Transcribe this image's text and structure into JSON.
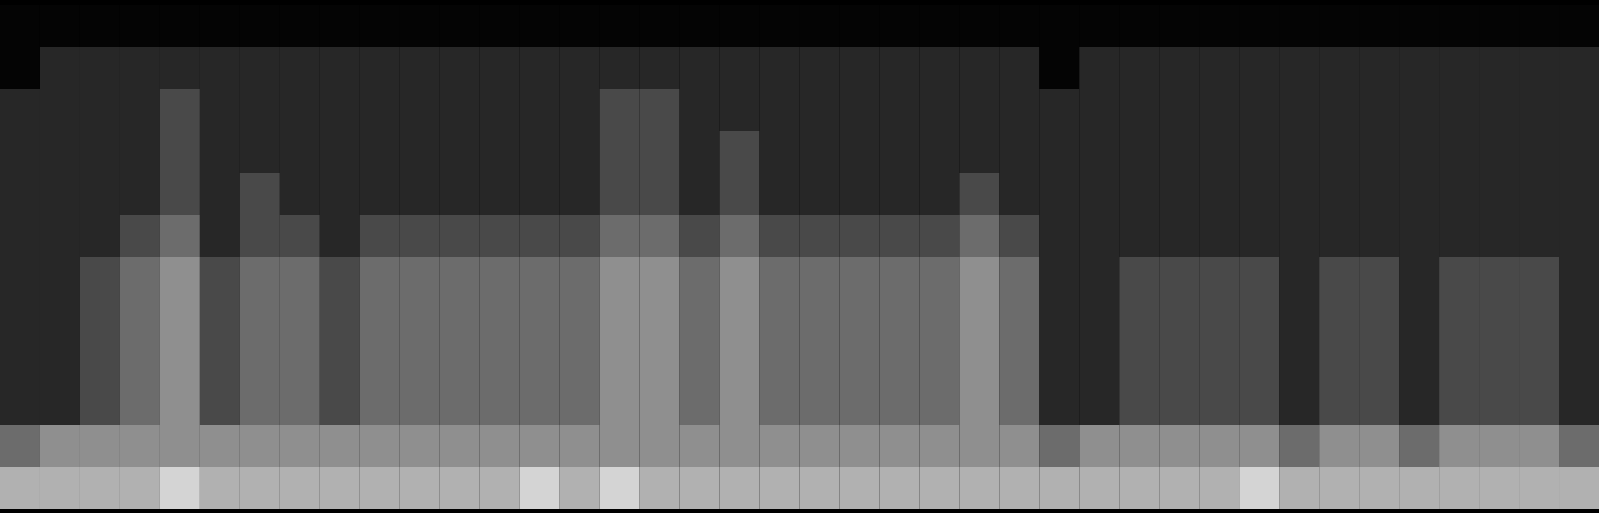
{
  "chart_data": {
    "type": "heatmap",
    "tick_labels": false,
    "zlim": [
      0,
      6
    ],
    "cells": [
      [
        0,
        0,
        0,
        0,
        0,
        0,
        0,
        0,
        0,
        0,
        0,
        0,
        0,
        0,
        0,
        0,
        0,
        0,
        0,
        0,
        0,
        0,
        0,
        0,
        0,
        0,
        0,
        0,
        0,
        0,
        0,
        0,
        0,
        0,
        0,
        0,
        0,
        0,
        0,
        0
      ],
      [
        0,
        1,
        1,
        1,
        1,
        1,
        1,
        1,
        1,
        1,
        1,
        1,
        1,
        1,
        1,
        1,
        1,
        1,
        1,
        1,
        1,
        1,
        1,
        1,
        1,
        1,
        0,
        1,
        1,
        1,
        1,
        1,
        1,
        1,
        1,
        1,
        1,
        1,
        1,
        1
      ],
      [
        1,
        1,
        1,
        1,
        2,
        1,
        1,
        1,
        1,
        1,
        1,
        1,
        1,
        1,
        1,
        2,
        2,
        1,
        1,
        1,
        1,
        1,
        1,
        1,
        1,
        1,
        1,
        1,
        1,
        1,
        1,
        1,
        1,
        1,
        1,
        1,
        1,
        1,
        1,
        1
      ],
      [
        1,
        1,
        1,
        1,
        2,
        1,
        1,
        1,
        1,
        1,
        1,
        1,
        1,
        1,
        1,
        2,
        2,
        1,
        2,
        1,
        1,
        1,
        1,
        1,
        1,
        1,
        1,
        1,
        1,
        1,
        1,
        1,
        1,
        1,
        1,
        1,
        1,
        1,
        1,
        1
      ],
      [
        1,
        1,
        1,
        1,
        2,
        1,
        2,
        1,
        1,
        1,
        1,
        1,
        1,
        1,
        1,
        2,
        2,
        1,
        2,
        1,
        1,
        1,
        1,
        1,
        2,
        1,
        1,
        1,
        1,
        1,
        1,
        1,
        1,
        1,
        1,
        1,
        1,
        1,
        1,
        1
      ],
      [
        1,
        1,
        1,
        2,
        3,
        1,
        2,
        2,
        1,
        2,
        2,
        2,
        2,
        2,
        2,
        3,
        3,
        2,
        3,
        2,
        2,
        2,
        2,
        2,
        3,
        2,
        1,
        1,
        1,
        1,
        1,
        1,
        1,
        1,
        1,
        1,
        1,
        1,
        1,
        1
      ],
      [
        1,
        1,
        2,
        3,
        4,
        2,
        3,
        3,
        2,
        3,
        3,
        3,
        3,
        3,
        3,
        4,
        4,
        3,
        4,
        3,
        3,
        3,
        3,
        3,
        4,
        3,
        1,
        1,
        2,
        2,
        2,
        2,
        1,
        2,
        2,
        1,
        2,
        2,
        2,
        1
      ],
      [
        1,
        1,
        2,
        3,
        4,
        2,
        3,
        3,
        2,
        3,
        3,
        3,
        3,
        3,
        3,
        4,
        4,
        3,
        4,
        3,
        3,
        3,
        3,
        3,
        4,
        3,
        1,
        1,
        2,
        2,
        2,
        2,
        1,
        2,
        2,
        1,
        2,
        2,
        2,
        1
      ],
      [
        1,
        1,
        2,
        3,
        4,
        2,
        3,
        3,
        2,
        3,
        3,
        3,
        3,
        3,
        3,
        4,
        4,
        3,
        4,
        3,
        3,
        3,
        3,
        3,
        4,
        3,
        1,
        1,
        2,
        2,
        2,
        2,
        1,
        2,
        2,
        1,
        2,
        2,
        2,
        1
      ],
      [
        1,
        1,
        2,
        3,
        4,
        2,
        3,
        3,
        2,
        3,
        3,
        3,
        3,
        3,
        3,
        4,
        4,
        3,
        4,
        3,
        3,
        3,
        3,
        3,
        4,
        3,
        1,
        1,
        2,
        2,
        2,
        2,
        1,
        2,
        2,
        1,
        2,
        2,
        2,
        1
      ],
      [
        3,
        4,
        4,
        4,
        4,
        4,
        4,
        4,
        4,
        4,
        4,
        4,
        4,
        4,
        4,
        4,
        4,
        4,
        4,
        4,
        4,
        4,
        4,
        4,
        4,
        4,
        3,
        4,
        4,
        4,
        4,
        4,
        3,
        4,
        4,
        3,
        4,
        4,
        4,
        3
      ],
      [
        5,
        5,
        5,
        5,
        6,
        5,
        5,
        5,
        5,
        5,
        5,
        5,
        5,
        6,
        5,
        6,
        5,
        5,
        5,
        5,
        5,
        5,
        5,
        5,
        5,
        5,
        5,
        5,
        5,
        5,
        5,
        6,
        5,
        5,
        5,
        5,
        5,
        5,
        5,
        5
      ]
    ]
  }
}
